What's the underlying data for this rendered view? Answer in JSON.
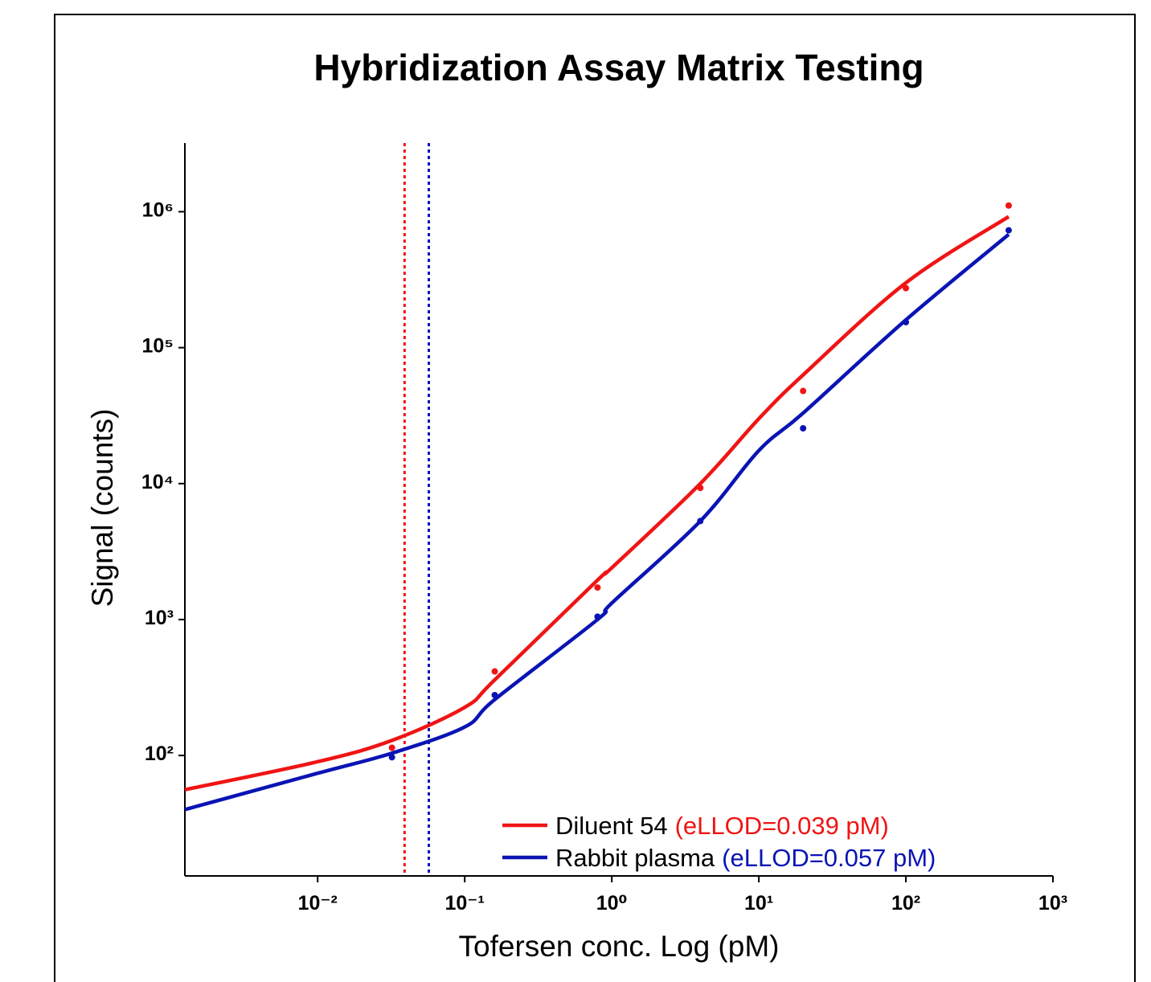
{
  "chart_data": {
    "type": "scatter",
    "title": "Hybridization Assay Matrix Testing",
    "xlabel": "Tofersen conc. Log (pM)",
    "ylabel": "Signal (counts)",
    "xscale": "log",
    "yscale": "log",
    "xlim": [
      0.00125,
      1000
    ],
    "ylim": [
      13,
      3200000
    ],
    "xticks": [
      {
        "value": 0.01,
        "label": "10⁻²"
      },
      {
        "value": 0.1,
        "label": "10⁻¹"
      },
      {
        "value": 1,
        "label": "10⁰"
      },
      {
        "value": 10,
        "label": "10¹"
      },
      {
        "value": 100,
        "label": "10²"
      },
      {
        "value": 1000,
        "label": "10³"
      }
    ],
    "yticks": [
      {
        "value": 100,
        "label": "10²"
      },
      {
        "value": 1000,
        "label": "10³"
      },
      {
        "value": 10000,
        "label": "10⁴"
      },
      {
        "value": 100000,
        "label": "10⁵"
      },
      {
        "value": 1000000,
        "label": "10⁶"
      }
    ],
    "legend": "lower right",
    "series": [
      {
        "name": "Diluent 54",
        "annotation": "(eLLOD=0.039 pM)",
        "color": "#f01414",
        "lod": 0.039,
        "x": [
          0.032,
          0.16,
          0.8,
          4,
          20,
          100,
          500
        ],
        "values": [
          114,
          415,
          1720,
          9300,
          48000,
          274000,
          1110000
        ],
        "fit_x": [
          0.00125,
          0.01,
          0.032,
          0.1,
          0.16,
          0.8,
          1,
          4,
          10,
          20,
          100,
          500
        ],
        "fit_values": [
          56,
          90,
          129,
          226,
          360,
          1950,
          2400,
          10000,
          30000,
          63000,
          300000,
          920000
        ]
      },
      {
        "name": "Rabbit plasma",
        "annotation": "(eLLOD=0.057 pM)",
        "color": "#0a14b4",
        "lod": 0.057,
        "x": [
          0.032,
          0.16,
          0.8,
          4,
          20,
          100,
          500
        ],
        "values": [
          97,
          278,
          1050,
          5300,
          25500,
          154000,
          730000
        ],
        "fit_x": [
          0.00125,
          0.01,
          0.032,
          0.1,
          0.16,
          0.8,
          1,
          4,
          10,
          20,
          100,
          500
        ],
        "fit_values": [
          40,
          74,
          104,
          162,
          258,
          1000,
          1320,
          5300,
          17500,
          33000,
          160000,
          680000
        ]
      }
    ]
  }
}
